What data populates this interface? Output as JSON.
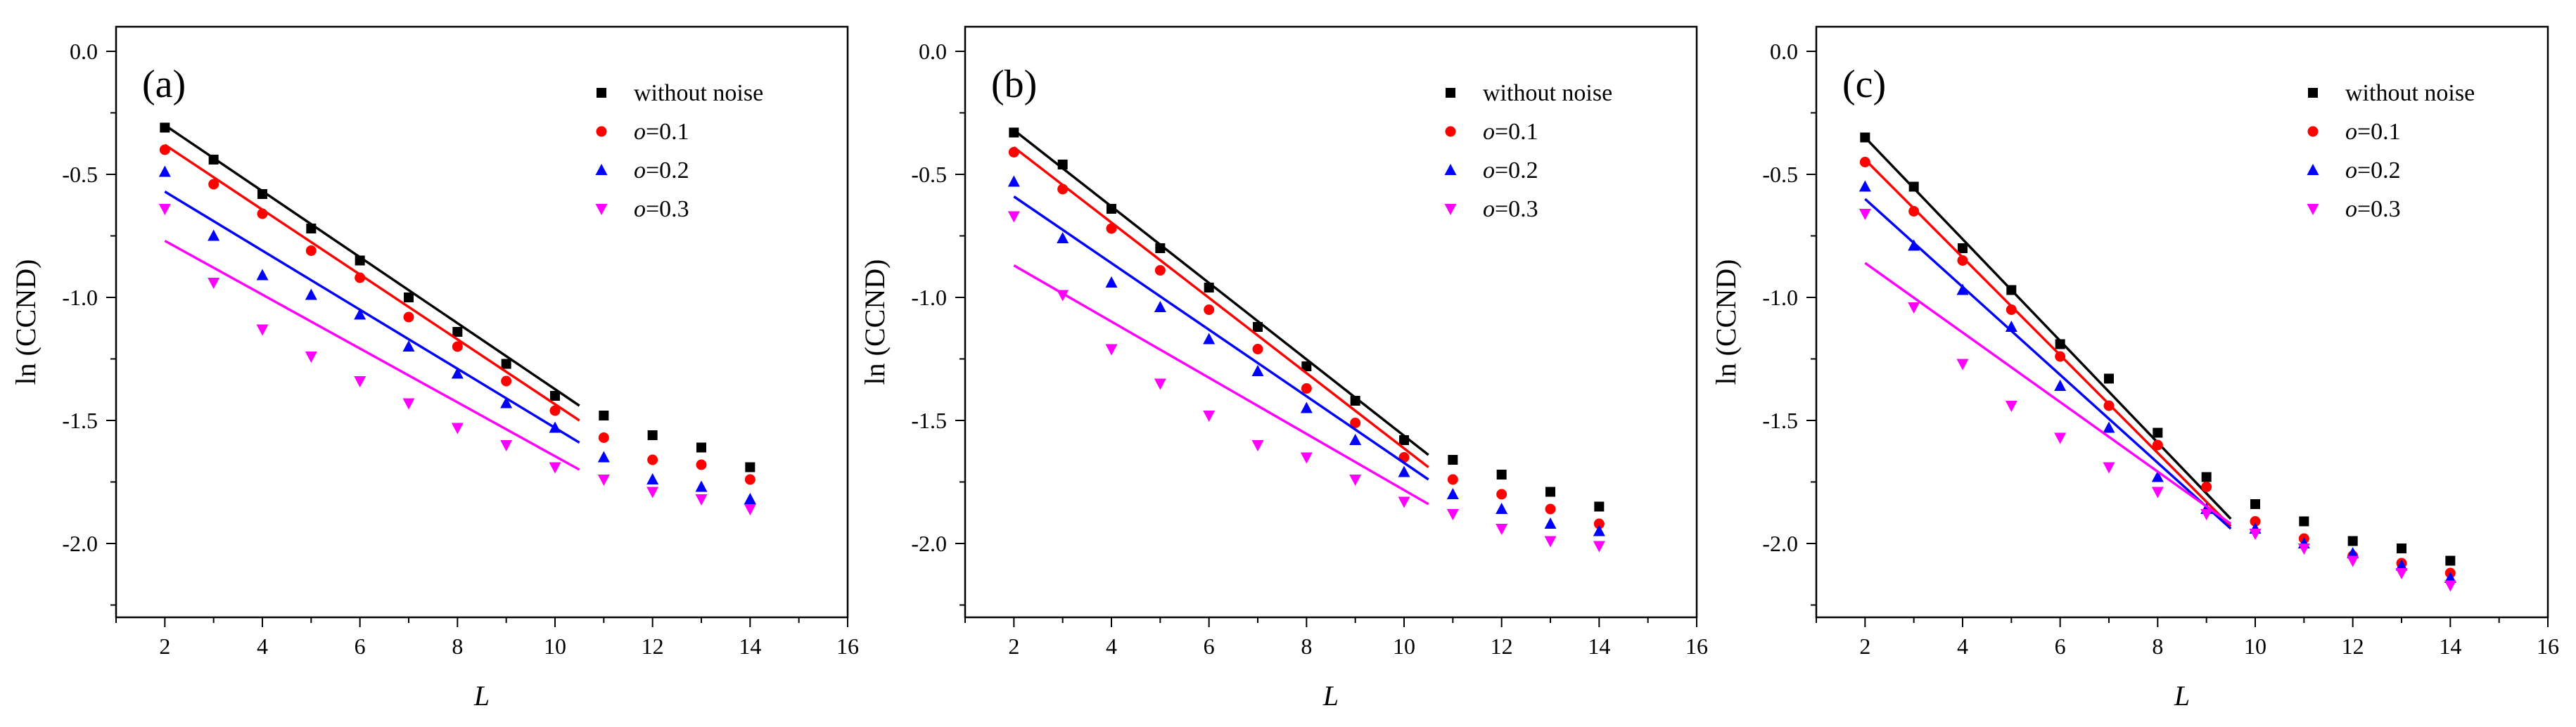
{
  "colors": {
    "without noise": "#000000",
    "o=0.1": "#ff0000",
    "o=0.2": "#0000ff",
    "o=0.3": "#ff00ff"
  },
  "chart_data": [
    {
      "type": "scatter",
      "panel": "(a)",
      "xlabel": "L",
      "ylabel": "ln (CCND)",
      "xlim": [
        1,
        16
      ],
      "ylim": [
        -2.3,
        0.1
      ],
      "xticks": [
        2,
        4,
        6,
        8,
        10,
        12,
        14,
        16
      ],
      "yticks": [
        0.0,
        -0.5,
        -1.0,
        -1.5,
        -2.0
      ],
      "tick_labels": [
        "0.0",
        "-0.5",
        "-1.0",
        "-1.5",
        "-2.0"
      ],
      "legend": {
        "location": "top-right",
        "entries": [
          {
            "prefix": "without noise",
            "italic": "",
            "suffix": ""
          },
          {
            "prefix": "",
            "italic": "o",
            "suffix": "=0.1"
          },
          {
            "prefix": "",
            "italic": "o",
            "suffix": "=0.2"
          },
          {
            "prefix": "",
            "italic": "o",
            "suffix": "=0.3"
          }
        ]
      },
      "series": [
        {
          "name": "without noise",
          "marker": "square",
          "x": [
            2,
            3,
            4,
            5,
            6,
            7,
            8,
            9,
            10,
            11,
            12,
            13,
            14
          ],
          "y": [
            -0.31,
            -0.44,
            -0.58,
            -0.72,
            -0.85,
            -1.0,
            -1.14,
            -1.27,
            -1.4,
            -1.48,
            -1.56,
            -1.61,
            -1.69
          ],
          "fit": {
            "x": [
              2,
              10.5
            ],
            "y": [
              -0.3,
              -1.44
            ]
          }
        },
        {
          "name": "o=0.1",
          "marker": "circle",
          "x": [
            2,
            3,
            4,
            5,
            6,
            7,
            8,
            9,
            10,
            11,
            12,
            13,
            14
          ],
          "y": [
            -0.4,
            -0.54,
            -0.66,
            -0.81,
            -0.92,
            -1.08,
            -1.2,
            -1.34,
            -1.46,
            -1.57,
            -1.66,
            -1.68,
            -1.74
          ],
          "fit": {
            "x": [
              2,
              10.5
            ],
            "y": [
              -0.38,
              -1.5
            ]
          }
        },
        {
          "name": "o=0.2",
          "marker": "triangle-up",
          "x": [
            2,
            3,
            4,
            5,
            6,
            7,
            8,
            9,
            10,
            11,
            12,
            13,
            14
          ],
          "y": [
            -0.49,
            -0.75,
            -0.91,
            -0.99,
            -1.07,
            -1.2,
            -1.31,
            -1.43,
            -1.53,
            -1.65,
            -1.74,
            -1.77,
            -1.82
          ],
          "fit": {
            "x": [
              2,
              10.5
            ],
            "y": [
              -0.57,
              -1.59
            ]
          }
        },
        {
          "name": "o=0.3",
          "marker": "triangle-down",
          "x": [
            2,
            3,
            4,
            5,
            6,
            7,
            8,
            9,
            10,
            11,
            12,
            13,
            14
          ],
          "y": [
            -0.64,
            -0.94,
            -1.13,
            -1.24,
            -1.34,
            -1.43,
            -1.53,
            -1.6,
            -1.69,
            -1.74,
            -1.79,
            -1.82,
            -1.86
          ],
          "fit": {
            "x": [
              2,
              10.5
            ],
            "y": [
              -0.77,
              -1.7
            ]
          }
        }
      ]
    },
    {
      "type": "scatter",
      "panel": "(b)",
      "xlabel": "L",
      "ylabel": "ln (CCND)",
      "xlim": [
        1,
        16
      ],
      "ylim": [
        -2.3,
        0.1
      ],
      "xticks": [
        2,
        4,
        6,
        8,
        10,
        12,
        14,
        16
      ],
      "yticks": [
        0.0,
        -0.5,
        -1.0,
        -1.5,
        -2.0
      ],
      "tick_labels": [
        "0.0",
        "-0.5",
        "-1.0",
        "-1.5",
        "-2.0"
      ],
      "legend": {
        "location": "top-right",
        "entries": [
          {
            "prefix": "without noise",
            "italic": "",
            "suffix": ""
          },
          {
            "prefix": "",
            "italic": "o",
            "suffix": "=0.1"
          },
          {
            "prefix": "",
            "italic": "o",
            "suffix": "=0.2"
          },
          {
            "prefix": "",
            "italic": "o",
            "suffix": "=0.3"
          }
        ]
      },
      "series": [
        {
          "name": "without noise",
          "marker": "square",
          "x": [
            2,
            3,
            4,
            5,
            6,
            7,
            8,
            9,
            10,
            11,
            12,
            13,
            14
          ],
          "y": [
            -0.33,
            -0.46,
            -0.64,
            -0.8,
            -0.96,
            -1.12,
            -1.28,
            -1.42,
            -1.58,
            -1.66,
            -1.72,
            -1.79,
            -1.85
          ],
          "fit": {
            "x": [
              2,
              10.5
            ],
            "y": [
              -0.32,
              -1.64
            ]
          }
        },
        {
          "name": "o=0.1",
          "marker": "circle",
          "x": [
            2,
            3,
            4,
            5,
            6,
            7,
            8,
            9,
            10,
            11,
            12,
            13,
            14
          ],
          "y": [
            -0.41,
            -0.56,
            -0.72,
            -0.89,
            -1.05,
            -1.21,
            -1.37,
            -1.51,
            -1.65,
            -1.74,
            -1.8,
            -1.86,
            -1.92
          ],
          "fit": {
            "x": [
              2,
              10.5
            ],
            "y": [
              -0.39,
              -1.69
            ]
          }
        },
        {
          "name": "o=0.2",
          "marker": "triangle-up",
          "x": [
            2,
            3,
            4,
            5,
            6,
            7,
            8,
            9,
            10,
            11,
            12,
            13,
            14
          ],
          "y": [
            -0.53,
            -0.76,
            -0.94,
            -1.04,
            -1.17,
            -1.3,
            -1.45,
            -1.58,
            -1.71,
            -1.8,
            -1.86,
            -1.92,
            -1.95
          ],
          "fit": {
            "x": [
              2,
              10.5
            ],
            "y": [
              -0.59,
              -1.74
            ]
          }
        },
        {
          "name": "o=0.3",
          "marker": "triangle-down",
          "x": [
            2,
            3,
            4,
            5,
            6,
            7,
            8,
            9,
            10,
            11,
            12,
            13,
            14
          ],
          "y": [
            -0.67,
            -0.99,
            -1.21,
            -1.35,
            -1.48,
            -1.6,
            -1.65,
            -1.74,
            -1.83,
            -1.88,
            -1.94,
            -1.99,
            -2.01
          ],
          "fit": {
            "x": [
              2,
              10.5
            ],
            "y": [
              -0.87,
              -1.84
            ]
          }
        }
      ]
    },
    {
      "type": "scatter",
      "panel": "(c)",
      "xlabel": "L",
      "ylabel": "ln (CCND)",
      "xlim": [
        1,
        16
      ],
      "ylim": [
        -2.3,
        0.1
      ],
      "xticks": [
        2,
        4,
        6,
        8,
        10,
        12,
        14,
        16
      ],
      "yticks": [
        0.0,
        -0.5,
        -1.0,
        -1.5,
        -2.0
      ],
      "tick_labels": [
        "0.0",
        "-0.5",
        "-1.0",
        "-1.5",
        "-2.0"
      ],
      "legend": {
        "location": "top-right",
        "entries": [
          {
            "prefix": "without noise",
            "italic": "",
            "suffix": ""
          },
          {
            "prefix": "",
            "italic": "o",
            "suffix": "=0.1"
          },
          {
            "prefix": "",
            "italic": "o",
            "suffix": "=0.2"
          },
          {
            "prefix": "",
            "italic": "o",
            "suffix": "=0.3"
          }
        ]
      },
      "series": [
        {
          "name": "without noise",
          "marker": "square",
          "x": [
            2,
            3,
            4,
            5,
            6,
            7,
            8,
            9,
            10,
            11,
            12,
            13,
            14
          ],
          "y": [
            -0.35,
            -0.55,
            -0.8,
            -0.97,
            -1.19,
            -1.33,
            -1.55,
            -1.73,
            -1.84,
            -1.91,
            -1.99,
            -2.02,
            -2.07
          ],
          "fit": {
            "x": [
              2,
              9.5
            ],
            "y": [
              -0.35,
              -1.9
            ]
          }
        },
        {
          "name": "o=0.1",
          "marker": "circle",
          "x": [
            2,
            3,
            4,
            5,
            6,
            7,
            8,
            9,
            10,
            11,
            12,
            13,
            14
          ],
          "y": [
            -0.45,
            -0.65,
            -0.85,
            -1.05,
            -1.24,
            -1.44,
            -1.6,
            -1.77,
            -1.91,
            -1.98,
            -2.05,
            -2.08,
            -2.12
          ],
          "fit": {
            "x": [
              2,
              9.5
            ],
            "y": [
              -0.44,
              -1.93
            ]
          }
        },
        {
          "name": "o=0.2",
          "marker": "triangle-up",
          "x": [
            2,
            3,
            4,
            5,
            6,
            7,
            8,
            9,
            10,
            11,
            12,
            13,
            14
          ],
          "y": [
            -0.55,
            -0.79,
            -0.97,
            -1.12,
            -1.36,
            -1.53,
            -1.73,
            -1.86,
            -1.94,
            -2.0,
            -2.04,
            -2.09,
            -2.14
          ],
          "fit": {
            "x": [
              2,
              9.5
            ],
            "y": [
              -0.6,
              -1.94
            ]
          }
        },
        {
          "name": "o=0.3",
          "marker": "triangle-down",
          "x": [
            2,
            3,
            4,
            5,
            6,
            7,
            8,
            9,
            10,
            11,
            12,
            13,
            14
          ],
          "y": [
            -0.66,
            -1.04,
            -1.27,
            -1.44,
            -1.57,
            -1.69,
            -1.79,
            -1.88,
            -1.96,
            -2.02,
            -2.07,
            -2.12,
            -2.17
          ],
          "fit": {
            "x": [
              2,
              9.5
            ],
            "y": [
              -0.86,
              -1.92
            ]
          }
        }
      ]
    }
  ]
}
